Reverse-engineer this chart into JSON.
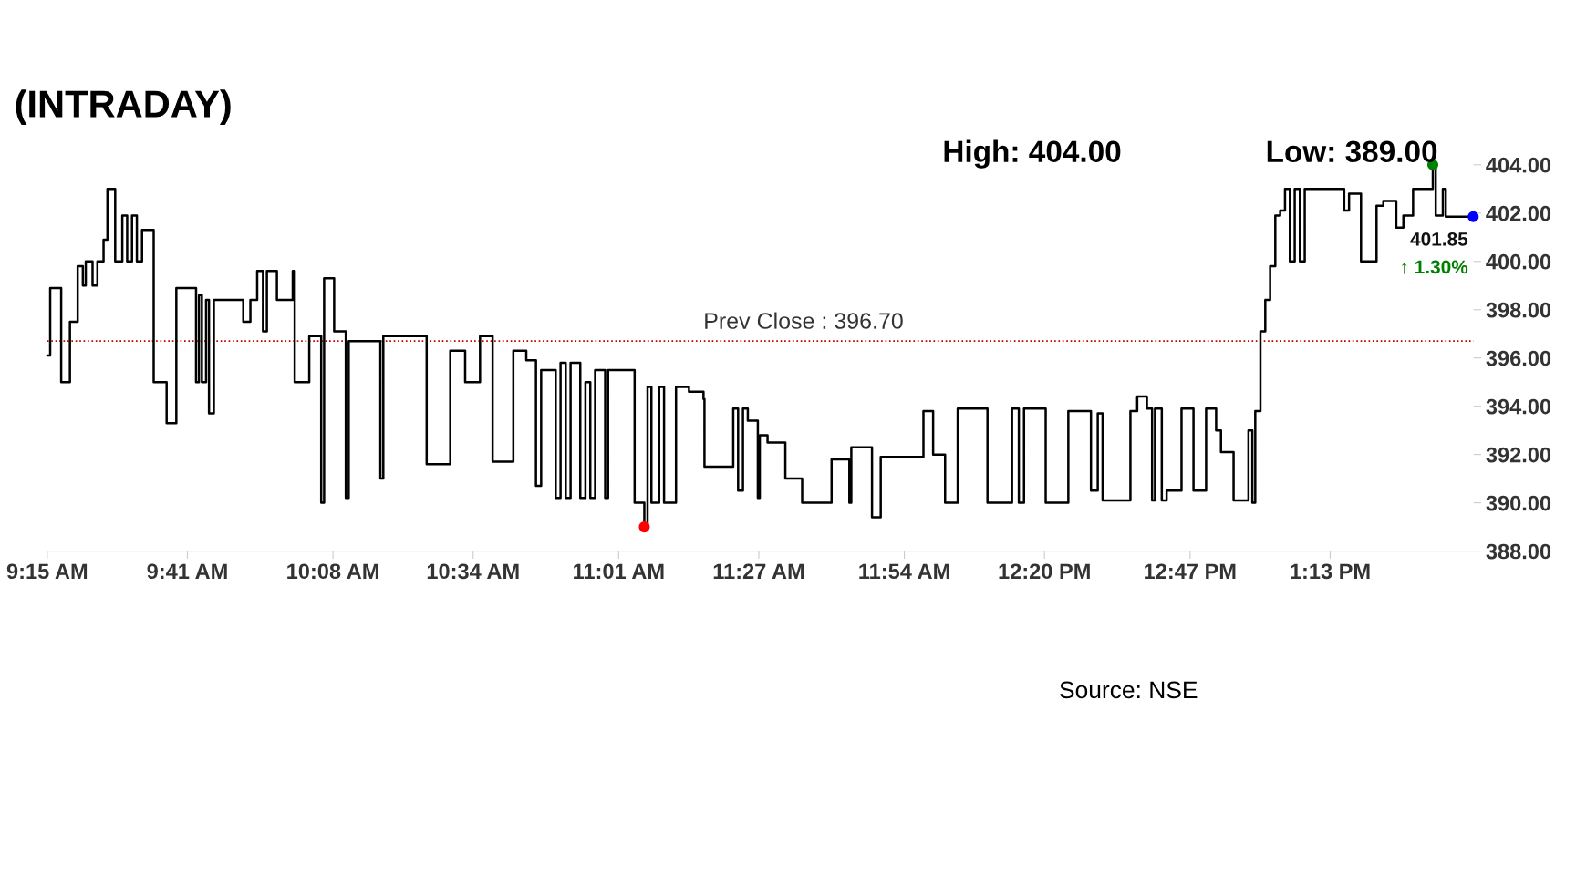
{
  "chart_data": {
    "type": "step",
    "title": "(INTRADAY)",
    "x": [
      9.25,
      9.259,
      9.293,
      9.32,
      9.344,
      9.36,
      9.369,
      9.39,
      9.405,
      9.424,
      9.436,
      9.46,
      9.482,
      9.497,
      9.512,
      9.527,
      9.543,
      9.579,
      9.619,
      9.649,
      9.71,
      9.719,
      9.728,
      9.741,
      9.75,
      9.765,
      9.856,
      9.878,
      9.899,
      9.917,
      9.929,
      9.96,
      10.009,
      10.015,
      10.06,
      10.097,
      10.106,
      10.137,
      10.173,
      10.182,
      10.28,
      10.289,
      10.423,
      10.496,
      10.542,
      10.588,
      10.627,
      10.691,
      10.731,
      10.761,
      10.777,
      10.822,
      10.837,
      10.853,
      10.868,
      10.898,
      10.914,
      10.929,
      10.944,
      10.975,
      10.984,
      11.066,
      11.096,
      11.106,
      11.118,
      11.142,
      11.157,
      11.194,
      11.234,
      11.279,
      11.282,
      11.371,
      11.386,
      11.401,
      11.416,
      11.447,
      11.453,
      11.477,
      11.532,
      11.584,
      11.675,
      11.73,
      11.736,
      11.8,
      11.827,
      11.959,
      11.989,
      12.026,
      12.065,
      12.157,
      12.233,
      12.254,
      12.27,
      12.337,
      12.407,
      12.477,
      12.498,
      12.513,
      12.599,
      12.62,
      12.65,
      12.666,
      12.675,
      12.696,
      12.711,
      12.757,
      12.794,
      12.833,
      12.864,
      12.879,
      12.918,
      12.964,
      12.976,
      12.985,
      13.001,
      13.016,
      13.031,
      13.047,
      13.062,
      13.077,
      13.092,
      13.107,
      13.123,
      13.138,
      13.26,
      13.275,
      13.312,
      13.36,
      13.381,
      13.421,
      13.443,
      13.473,
      13.534,
      13.543,
      13.565,
      13.574,
      13.659
    ],
    "series": [
      {
        "color": "#000000",
        "values": [
          396.1,
          398.9,
          395.0,
          397.5,
          399.8,
          399.0,
          400.0,
          399.0,
          400.0,
          400.9,
          403.0,
          400.0,
          401.9,
          400.0,
          401.9,
          400.0,
          401.3,
          395.0,
          393.3,
          398.9,
          395.0,
          398.6,
          395.0,
          398.4,
          393.7,
          398.4,
          397.5,
          398.4,
          399.6,
          397.1,
          399.6,
          398.4,
          399.6,
          395.0,
          396.9,
          390.0,
          399.3,
          397.1,
          390.2,
          396.7,
          391.0,
          396.9,
          391.6,
          396.3,
          395.0,
          396.9,
          391.7,
          396.3,
          395.9,
          390.7,
          395.5,
          390.2,
          395.8,
          390.2,
          395.8,
          390.2,
          395.0,
          390.2,
          395.5,
          390.2,
          395.5,
          390.0,
          389.0,
          394.8,
          390.0,
          394.8,
          390.0,
          394.8,
          394.6,
          394.3,
          391.5,
          393.9,
          390.5,
          393.9,
          393.4,
          390.2,
          392.8,
          392.5,
          391.0,
          390.0,
          391.8,
          390.0,
          392.3,
          389.4,
          391.9,
          393.8,
          392.0,
          390.0,
          393.9,
          390.0,
          393.9,
          390.0,
          393.9,
          390.0,
          393.8,
          390.5,
          393.7,
          390.1,
          393.8,
          394.4,
          393.9,
          390.1,
          393.9,
          390.1,
          390.5,
          393.9,
          390.5,
          393.9,
          393.0,
          392.1,
          390.1,
          393.0,
          390.0,
          393.8,
          397.1,
          398.4,
          399.8,
          401.9,
          402.1,
          403.0,
          400.0,
          403.0,
          400.0,
          403.0,
          402.1,
          402.8,
          400.0,
          402.3,
          402.5,
          401.4,
          401.9,
          403.0,
          404.0,
          401.9,
          403.0,
          401.85,
          401.85
        ]
      },
      {
        "type": "scatter",
        "x": [
          13.534,
          11.096,
          13.659
        ],
        "values": [
          404.0,
          389.0,
          401.85
        ],
        "colors": [
          "#008000",
          "#ff0000",
          "#0000ff"
        ]
      }
    ],
    "xlim": [
      9.25,
      13.66
    ],
    "xticks": [
      {
        "value": 9.25,
        "label": "9:15 AM"
      },
      {
        "value": 9.6833,
        "label": "9:41 AM"
      },
      {
        "value": 10.1333,
        "label": "10:08 AM"
      },
      {
        "value": 10.5667,
        "label": "10:34 AM"
      },
      {
        "value": 11.0167,
        "label": "11:01 AM"
      },
      {
        "value": 11.45,
        "label": "11:27 AM"
      },
      {
        "value": 11.9,
        "label": "11:54 AM"
      },
      {
        "value": 12.3333,
        "label": "12:20 PM"
      },
      {
        "value": 12.7833,
        "label": "12:47 PM"
      },
      {
        "value": 13.2167,
        "label": "1:13 PM"
      }
    ],
    "ylim": [
      388,
      404
    ],
    "yticks": [
      {
        "value": 388,
        "label": "388.00"
      },
      {
        "value": 390,
        "label": "390.00"
      },
      {
        "value": 392,
        "label": "392.00"
      },
      {
        "value": 394,
        "label": "394.00"
      },
      {
        "value": 396,
        "label": "396.00"
      },
      {
        "value": 398,
        "label": "398.00"
      },
      {
        "value": 400,
        "label": "400.00"
      },
      {
        "value": 402,
        "label": "402.00"
      },
      {
        "value": 404,
        "label": "404.00"
      }
    ],
    "ref_lines": [
      {
        "axis": "y",
        "value": 396.7,
        "label": "Prev Close : 396.70",
        "color": "#c00000",
        "line_style": "dotted"
      }
    ],
    "annotations": [
      "High: 404.00",
      "Low: 389.00",
      {
        "text": "401.85",
        "x": 13.659,
        "y": 401.85
      },
      {
        "text": "↑ 1.30%",
        "x": 13.659,
        "y": 401.85
      },
      "Source: NSE"
    ],
    "grid": false,
    "legend": false
  }
}
